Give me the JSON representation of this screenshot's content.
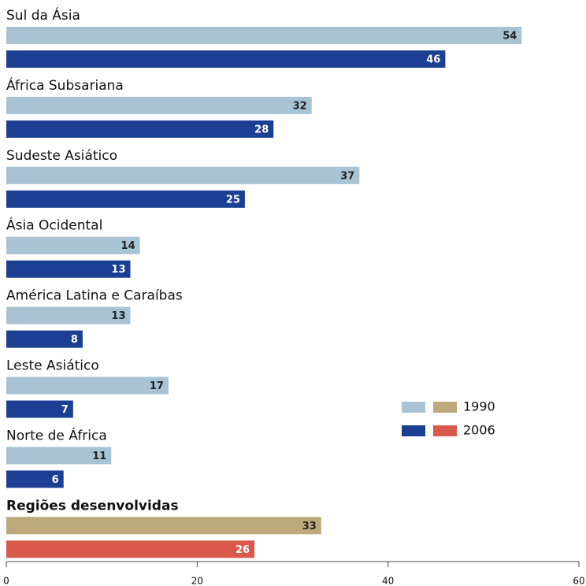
{
  "chart_data": {
    "type": "bar",
    "orientation": "horizontal",
    "categories": [
      "Sul da Ásia",
      "África Subsariana",
      "Sudeste Asiático",
      "Ásia Ocidental",
      "América Latina e Caraíbas",
      "Leste Asiático",
      "Norte de África",
      "Regiões desenvolvidas"
    ],
    "category_styles": [
      "normal",
      "normal",
      "normal",
      "normal",
      "normal",
      "normal",
      "normal",
      "bold"
    ],
    "series": [
      {
        "name": "1990",
        "values": [
          54,
          32,
          37,
          14,
          13,
          17,
          11,
          33
        ],
        "colors": [
          "#a8c4d4",
          "#a8c4d4",
          "#a8c4d4",
          "#a8c4d4",
          "#a8c4d4",
          "#a8c4d4",
          "#a8c4d4",
          "#bda97b"
        ],
        "label_color": "#222222"
      },
      {
        "name": "2006",
        "values": [
          46,
          28,
          25,
          13,
          8,
          7,
          6,
          26
        ],
        "colors": [
          "#1c3f94",
          "#1c3f94",
          "#1c3f94",
          "#1c3f94",
          "#1c3f94",
          "#1c3f94",
          "#1c3f94",
          "#d9584a"
        ],
        "label_color": "#ffffff"
      }
    ],
    "xlim": [
      0,
      60
    ],
    "xticks": [
      0,
      20,
      40,
      60
    ]
  }
}
